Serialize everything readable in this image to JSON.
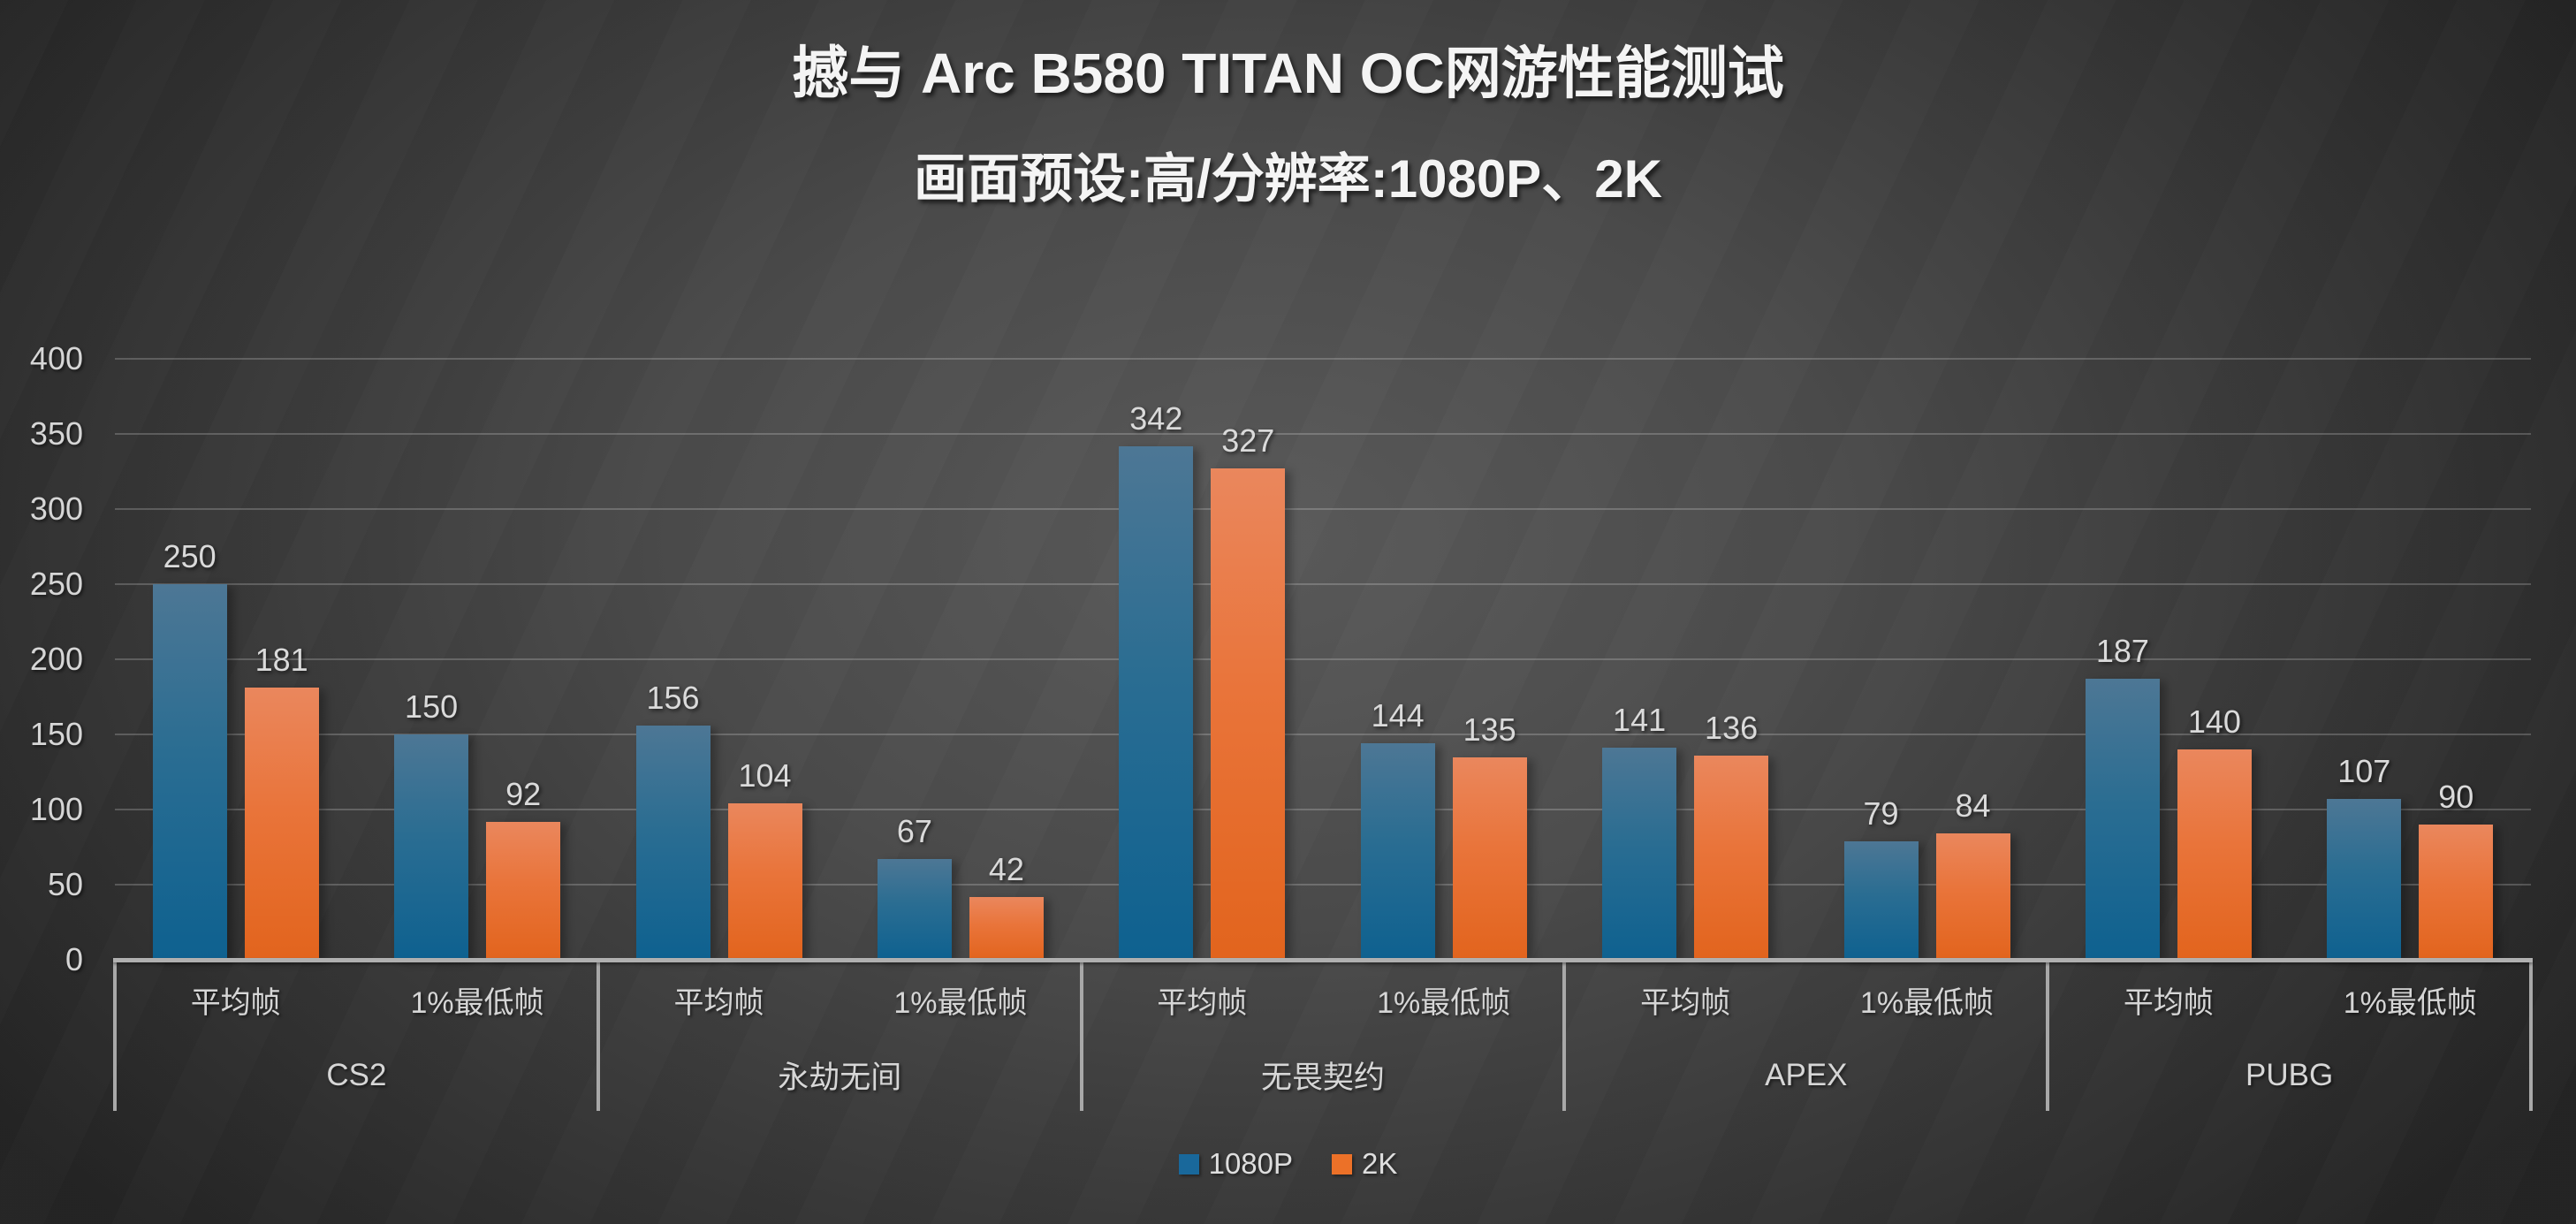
{
  "title": "撼与 Arc B580 TITAN OC网游性能测试",
  "subtitle": "画面预设:高/分辨率:1080P、2K",
  "chart_data": {
    "type": "bar",
    "title": "撼与 Arc B580 TITAN OC网游性能测试",
    "subtitle": "画面预设:高/分辨率:1080P、2K",
    "ylim": [
      0,
      400
    ],
    "ytick_step": 50,
    "yticks": [
      0,
      50,
      100,
      150,
      200,
      250,
      300,
      350,
      400
    ],
    "grid": true,
    "legend_position": "bottom-center",
    "series": [
      {
        "name": "1080P",
        "color": "#19689b"
      },
      {
        "name": "2K",
        "color": "#ec7128"
      }
    ],
    "groups": [
      {
        "category": "CS2",
        "subcategories": [
          {
            "label": "平均帧",
            "values": [
              250,
              181
            ]
          },
          {
            "label": "1%最低帧",
            "values": [
              150,
              92
            ]
          }
        ]
      },
      {
        "category": "永劫无间",
        "subcategories": [
          {
            "label": "平均帧",
            "values": [
              156,
              104
            ]
          },
          {
            "label": "1%最低帧",
            "values": [
              67,
              42
            ]
          }
        ]
      },
      {
        "category": "无畏契约",
        "subcategories": [
          {
            "label": "平均帧",
            "values": [
              342,
              327
            ]
          },
          {
            "label": "1%最低帧",
            "values": [
              144,
              135
            ]
          }
        ]
      },
      {
        "category": "APEX",
        "subcategories": [
          {
            "label": "平均帧",
            "values": [
              141,
              136
            ]
          },
          {
            "label": "1%最低帧",
            "values": [
              79,
              84
            ]
          }
        ]
      },
      {
        "category": "PUBG",
        "subcategories": [
          {
            "label": "平均帧",
            "values": [
              187,
              140
            ]
          },
          {
            "label": "1%最低帧",
            "values": [
              107,
              90
            ]
          }
        ]
      }
    ]
  },
  "colors": {
    "background_center": "#5a5a5a",
    "background_edge": "#242424",
    "bar_blue_top": "#4d7795",
    "bar_blue_bottom": "#0e6190",
    "bar_orange_top": "#ea875d",
    "bar_orange_bottom": "#e2641d",
    "gridline": "rgba(255,255,255,0.20)",
    "axis_line": "#b0b0b0",
    "text": "#d6d6d6",
    "title_text": "#f4f4f4"
  }
}
